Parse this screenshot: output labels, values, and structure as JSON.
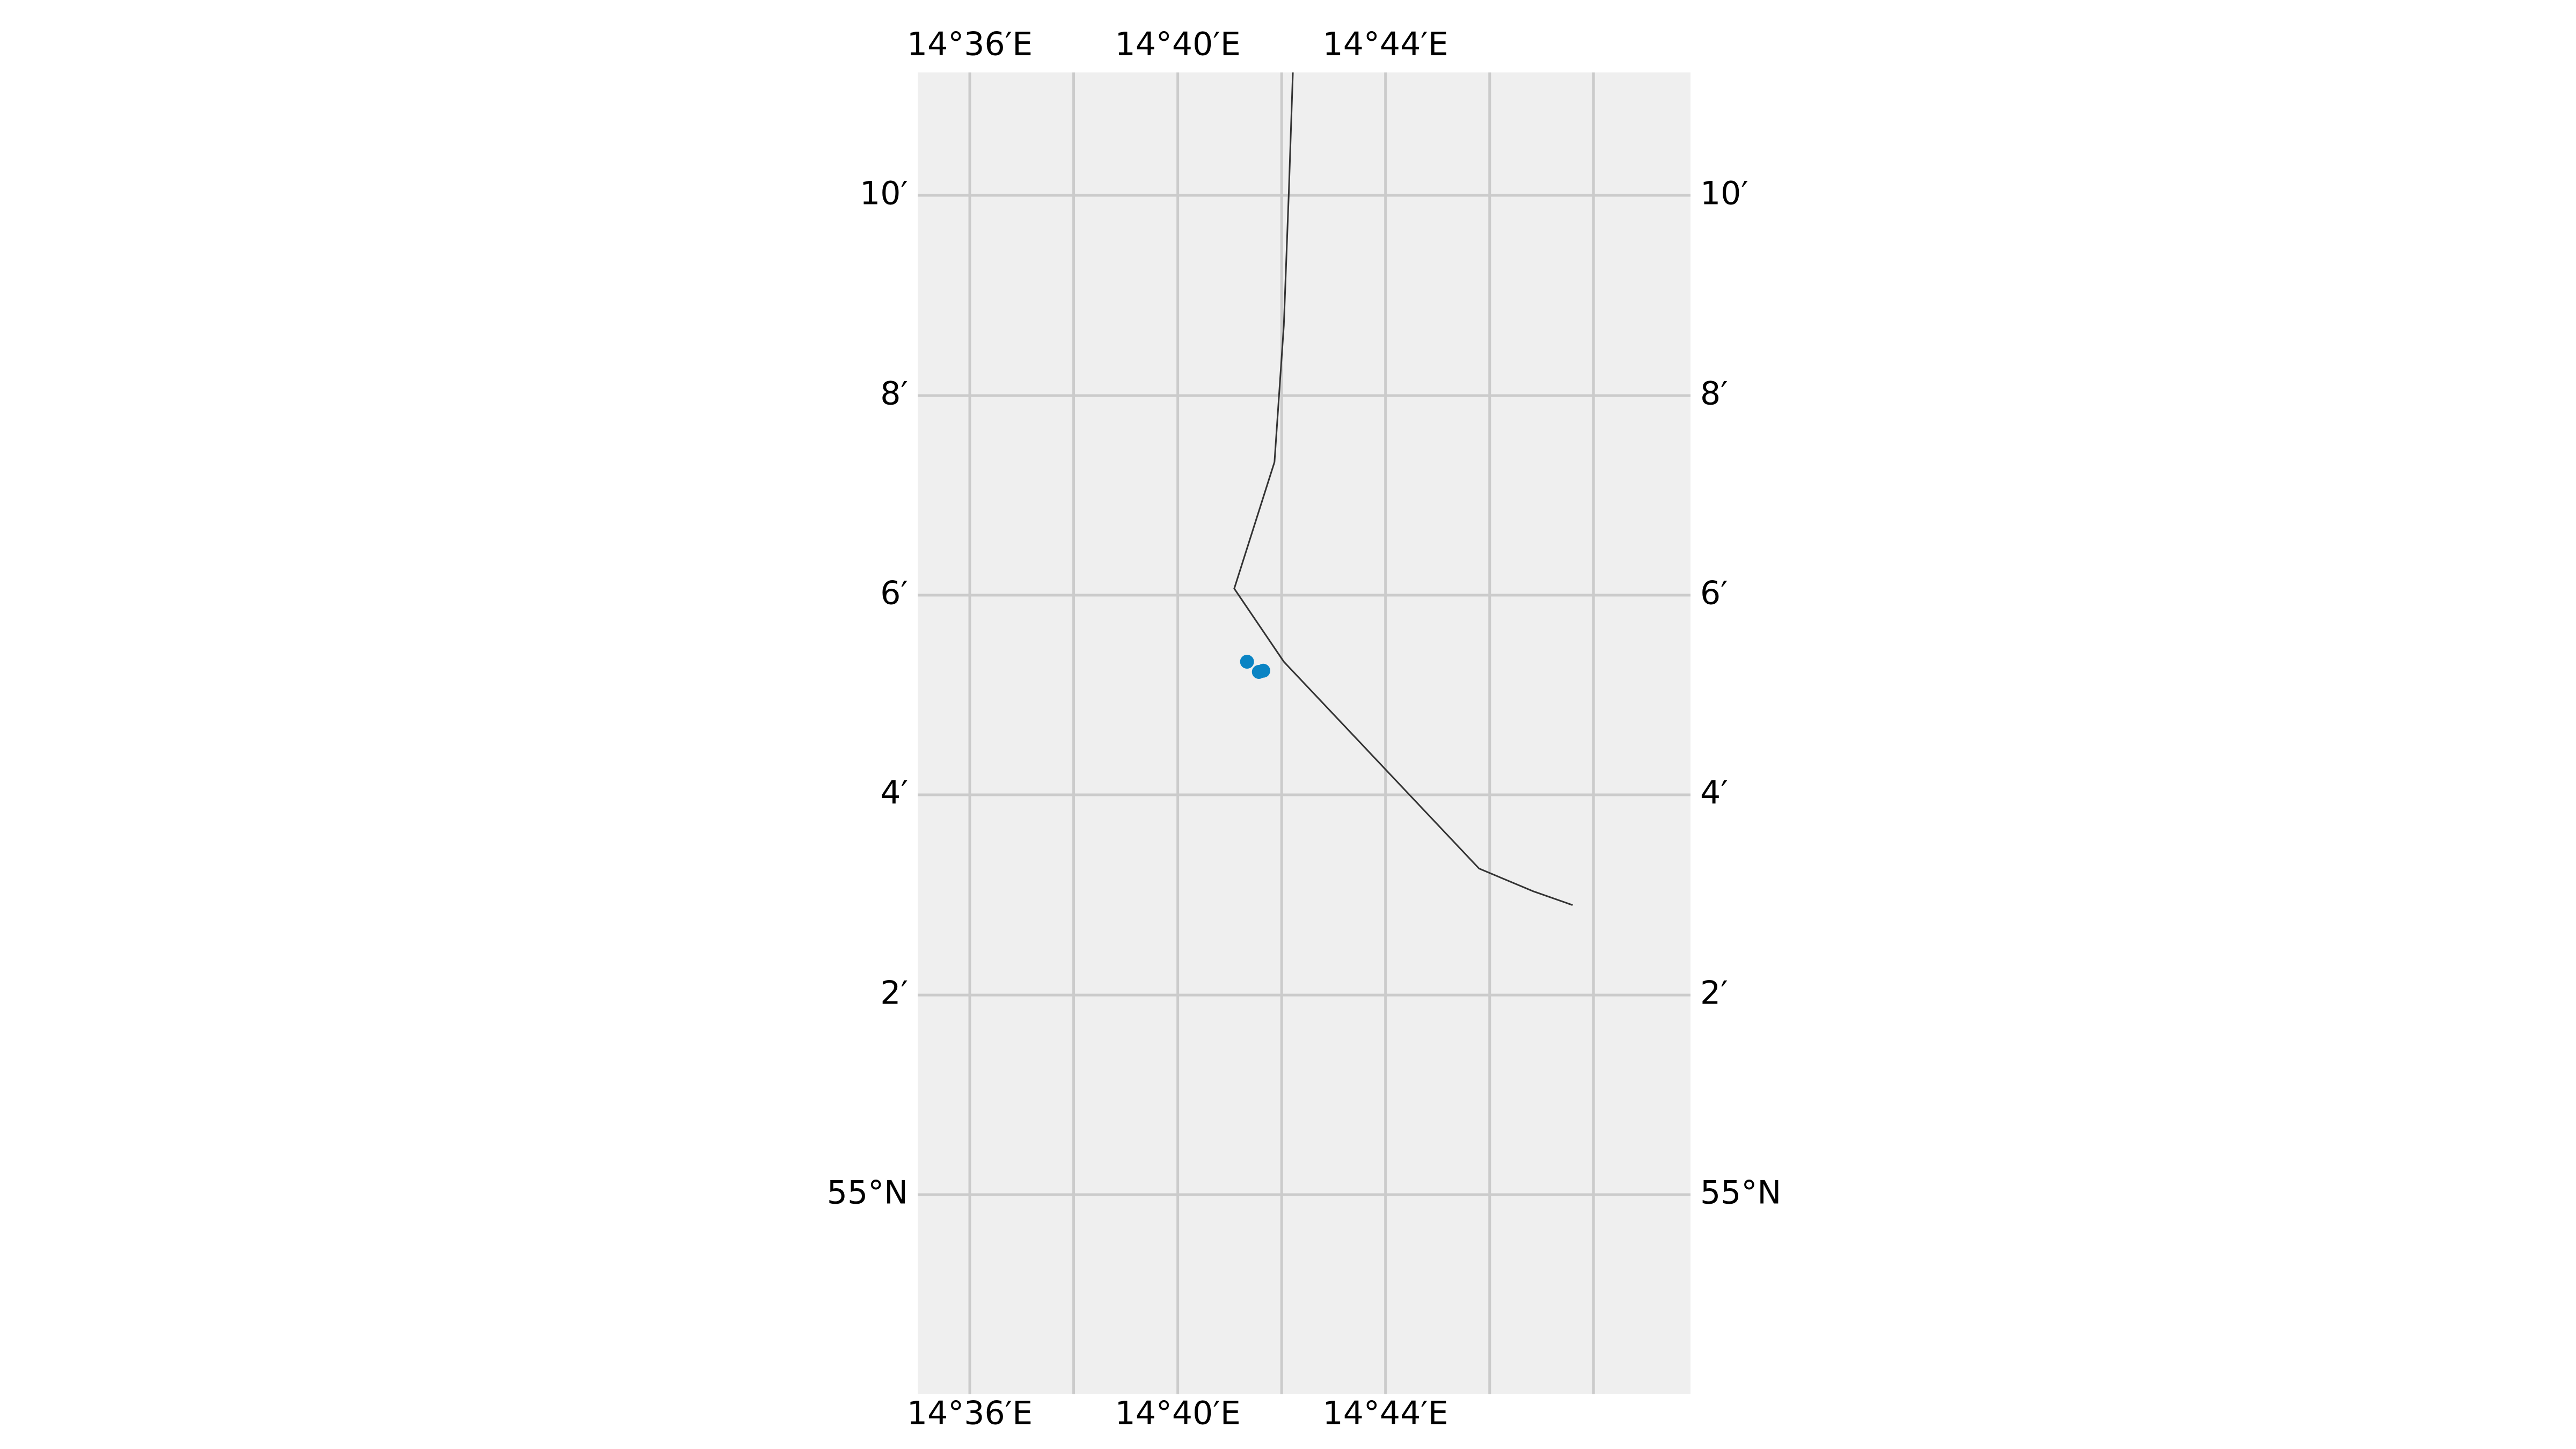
{
  "map": {
    "projection": "lat-lon",
    "extent": {
      "lon_min": 14.5833,
      "lon_max": 14.8311,
      "lat_min": 54.9667,
      "lat_max": 55.1872
    },
    "background_color": "#efefef",
    "grid": {
      "color": "#cbcbcb",
      "lon_lines": [
        14.6,
        14.6333,
        14.6667,
        14.7,
        14.7333,
        14.7667,
        14.8
      ],
      "lat_lines": [
        55.0,
        55.0333,
        55.0667,
        55.1,
        55.1333,
        55.1667
      ]
    },
    "top_tick_labels": [
      {
        "lon": 14.6,
        "text": "14°36′E"
      },
      {
        "lon": 14.6667,
        "text": "14°40′E"
      },
      {
        "lon": 14.7333,
        "text": "14°44′E"
      }
    ],
    "bottom_tick_labels": [
      {
        "lon": 14.6,
        "text": "14°36′E"
      },
      {
        "lon": 14.6667,
        "text": "14°40′E"
      },
      {
        "lon": 14.7333,
        "text": "14°44′E"
      }
    ],
    "left_tick_labels": [
      {
        "lat": 55.1667,
        "text": "10′"
      },
      {
        "lat": 55.1333,
        "text": "8′"
      },
      {
        "lat": 55.1,
        "text": "6′"
      },
      {
        "lat": 55.0667,
        "text": "4′"
      },
      {
        "lat": 55.0333,
        "text": "2′"
      },
      {
        "lat": 55.0,
        "text": "55°N"
      }
    ],
    "right_tick_labels": [
      {
        "lat": 55.1667,
        "text": "10′"
      },
      {
        "lat": 55.1333,
        "text": "8′"
      },
      {
        "lat": 55.1,
        "text": "6′"
      },
      {
        "lat": 55.0667,
        "text": "4′"
      },
      {
        "lat": 55.0333,
        "text": "2′"
      },
      {
        "lat": 55.0,
        "text": "55°N"
      }
    ],
    "boundary": {
      "color": "#333333",
      "points": [
        {
          "lon": 14.7036,
          "lat": 55.1872
        },
        {
          "lon": 14.7023,
          "lat": 55.1672
        },
        {
          "lon": 14.7007,
          "lat": 55.145
        },
        {
          "lon": 14.6977,
          "lat": 55.1222
        },
        {
          "lon": 14.6848,
          "lat": 55.1011
        },
        {
          "lon": 14.7007,
          "lat": 55.0889
        },
        {
          "lon": 14.7633,
          "lat": 55.0544
        },
        {
          "lon": 14.7807,
          "lat": 55.0506
        },
        {
          "lon": 14.7933,
          "lat": 55.0483
        }
      ]
    },
    "points": {
      "color": "#0a84c4",
      "items": [
        {
          "lon": 14.6889,
          "lat": 55.0889
        },
        {
          "lon": 14.6927,
          "lat": 55.0872
        },
        {
          "lon": 14.6941,
          "lat": 55.0874
        }
      ]
    }
  }
}
